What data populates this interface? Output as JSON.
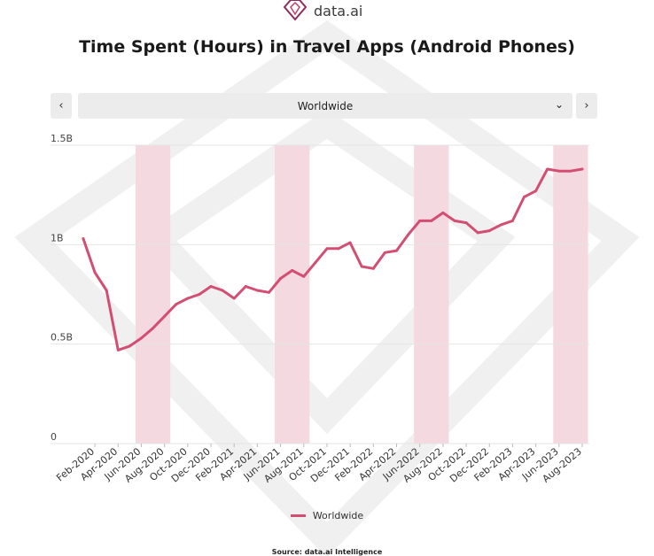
{
  "brand": {
    "name": "data.ai"
  },
  "title": "Time Spent (Hours) in Travel Apps (Android Phones)",
  "selector": {
    "value": "Worldwide",
    "prev_icon": "chevron-left-icon",
    "next_icon": "chevron-right-icon",
    "dropdown_icon": "chevron-down-icon"
  },
  "legend": {
    "label": "Worldwide"
  },
  "source": "Source: data.ai Intelligence",
  "colors": {
    "line": "#d34e73",
    "band": "#f5d9e1",
    "grid": "#e4e4e4"
  },
  "chart_data": {
    "type": "line",
    "title": "Time Spent (Hours) in Travel Apps (Android Phones)",
    "x": [
      "Jan-2020",
      "Feb-2020",
      "Mar-2020",
      "Apr-2020",
      "May-2020",
      "Jun-2020",
      "Jul-2020",
      "Aug-2020",
      "Sep-2020",
      "Oct-2020",
      "Nov-2020",
      "Dec-2020",
      "Jan-2021",
      "Feb-2021",
      "Mar-2021",
      "Apr-2021",
      "May-2021",
      "Jun-2021",
      "Jul-2021",
      "Aug-2021",
      "Sep-2021",
      "Oct-2021",
      "Nov-2021",
      "Dec-2021",
      "Jan-2022",
      "Feb-2022",
      "Mar-2022",
      "Apr-2022",
      "May-2022",
      "Jun-2022",
      "Jul-2022",
      "Aug-2022",
      "Sep-2022",
      "Oct-2022",
      "Nov-2022",
      "Dec-2022",
      "Jan-2023",
      "Feb-2023",
      "Mar-2023",
      "Apr-2023",
      "May-2023",
      "Jun-2023",
      "Jul-2023",
      "Aug-2023"
    ],
    "x_tick_labels": [
      "Feb-2020",
      "Apr-2020",
      "Jun-2020",
      "Aug-2020",
      "Oct-2020",
      "Dec-2020",
      "Feb-2021",
      "Apr-2021",
      "Jun-2021",
      "Aug-2021",
      "Oct-2021",
      "Dec-2021",
      "Feb-2022",
      "Apr-2022",
      "Jun-2022",
      "Aug-2022",
      "Oct-2022",
      "Dec-2022",
      "Feb-2023",
      "Apr-2023",
      "Jun-2023",
      "Aug-2023"
    ],
    "series": [
      {
        "name": "Worldwide",
        "values": [
          1.03,
          0.86,
          0.77,
          0.47,
          0.49,
          0.53,
          0.58,
          0.64,
          0.7,
          0.73,
          0.75,
          0.79,
          0.77,
          0.73,
          0.79,
          0.77,
          0.76,
          0.83,
          0.87,
          0.84,
          0.91,
          0.98,
          0.98,
          1.01,
          0.89,
          0.88,
          0.96,
          0.97,
          1.05,
          1.12,
          1.12,
          1.16,
          1.12,
          1.11,
          1.06,
          1.07,
          1.1,
          1.12,
          1.24,
          1.27,
          1.38,
          1.37,
          1.37,
          1.38
        ]
      }
    ],
    "highlight_bands": [
      [
        "Jun-2020",
        "Aug-2020"
      ],
      [
        "Jun-2021",
        "Aug-2021"
      ],
      [
        "Jun-2022",
        "Aug-2022"
      ],
      [
        "Jun-2023",
        "Aug-2023"
      ]
    ],
    "y_ticks": [
      {
        "value": 0,
        "label": "0"
      },
      {
        "value": 0.5,
        "label": "0.5B"
      },
      {
        "value": 1.0,
        "label": "1B"
      },
      {
        "value": 1.5,
        "label": "1.5B"
      }
    ],
    "ylim": [
      0,
      1.5
    ],
    "grid": true,
    "legend_position": "bottom"
  }
}
